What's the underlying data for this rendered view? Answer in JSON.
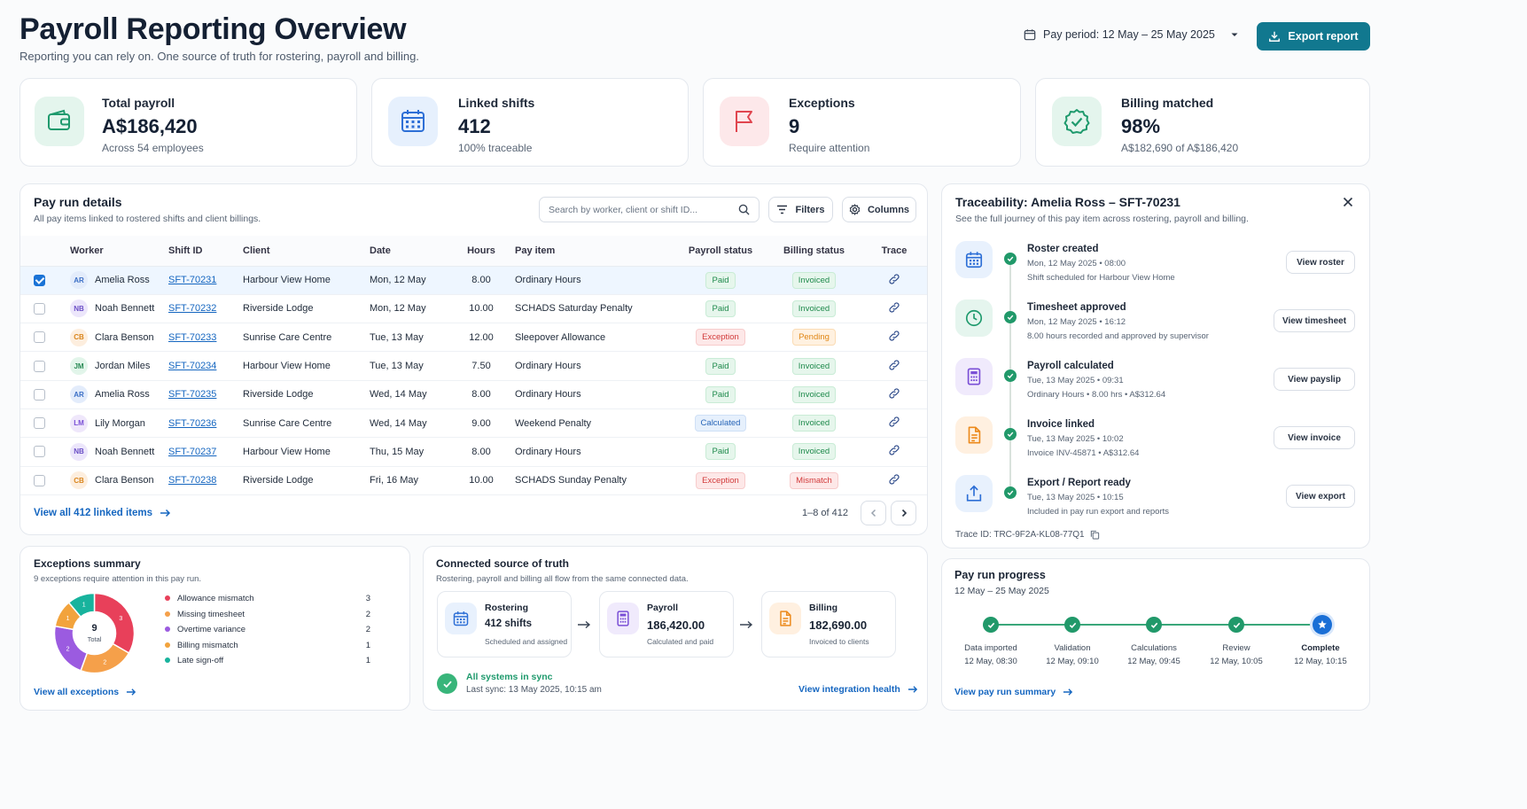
{
  "header": {
    "title": "Payroll Reporting Overview",
    "subtitle": "Reporting you can rely on. One source of truth for rostering, payroll and billing.",
    "pay_period": "Pay period: 12 May – 25 May 2025",
    "export_label": "Export report"
  },
  "kpis": [
    {
      "label": "Total payroll",
      "value": "A$186,420",
      "sub": "Across 54 employees",
      "icon": "wallet-icon",
      "color": "#1f9a6d"
    },
    {
      "label": "Linked shifts",
      "value": "412",
      "sub": "100% traceable",
      "icon": "calendar-icon",
      "color": "#2d6fd6"
    },
    {
      "label": "Exceptions",
      "value": "9",
      "sub": "Require attention",
      "icon": "flag-icon",
      "color": "#e0454f"
    },
    {
      "label": "Billing matched",
      "value": "98%",
      "sub": "A$182,690 of A$186,420",
      "icon": "check-badge-icon",
      "color": "#1f9a6d"
    }
  ],
  "payrun": {
    "title": "Pay run details",
    "subtitle": "All pay items linked to rostered shifts and client billings.",
    "search_placeholder": "Search by worker, client or shift ID...",
    "filters_label": "Filters",
    "columns_label": "Columns",
    "headers": [
      "Worker",
      "Shift ID",
      "Client",
      "Date",
      "Hours",
      "Pay item",
      "Payroll status",
      "Billing status",
      "Trace"
    ],
    "rows": [
      {
        "initials": "AR",
        "worker": "Amelia Ross",
        "shift": "SFT-70231",
        "client": "Harbour View Home",
        "date": "Mon, 12 May",
        "hours": "8.00",
        "item": "Ordinary Hours",
        "payroll": "Paid",
        "billing": "Invoiced",
        "selected": true
      },
      {
        "initials": "NB",
        "worker": "Noah Bennett",
        "shift": "SFT-70232",
        "client": "Riverside Lodge",
        "date": "Mon, 12 May",
        "hours": "10.00",
        "item": "SCHADS Saturday Penalty",
        "payroll": "Paid",
        "billing": "Invoiced",
        "selected": false
      },
      {
        "initials": "CB",
        "worker": "Clara Benson",
        "shift": "SFT-70233",
        "client": "Sunrise Care Centre",
        "date": "Tue, 13 May",
        "hours": "12.00",
        "item": "Sleepover Allowance",
        "payroll": "Exception",
        "billing": "Pending",
        "selected": false
      },
      {
        "initials": "JM",
        "worker": "Jordan Miles",
        "shift": "SFT-70234",
        "client": "Harbour View Home",
        "date": "Tue, 13 May",
        "hours": "7.50",
        "item": "Ordinary Hours",
        "payroll": "Paid",
        "billing": "Invoiced",
        "selected": false
      },
      {
        "initials": "AR",
        "worker": "Amelia Ross",
        "shift": "SFT-70235",
        "client": "Riverside Lodge",
        "date": "Wed, 14 May",
        "hours": "8.00",
        "item": "Ordinary Hours",
        "payroll": "Paid",
        "billing": "Invoiced",
        "selected": false
      },
      {
        "initials": "LM",
        "worker": "Lily Morgan",
        "shift": "SFT-70236",
        "client": "Sunrise Care Centre",
        "date": "Wed, 14 May",
        "hours": "9.00",
        "item": "Weekend Penalty",
        "payroll": "Calculated",
        "billing": "Invoiced",
        "selected": false
      },
      {
        "initials": "NB",
        "worker": "Noah Bennett",
        "shift": "SFT-70237",
        "client": "Harbour View Home",
        "date": "Thu, 15 May",
        "hours": "8.00",
        "item": "Ordinary Hours",
        "payroll": "Paid",
        "billing": "Invoiced",
        "selected": false
      },
      {
        "initials": "CB",
        "worker": "Clara Benson",
        "shift": "SFT-70238",
        "client": "Riverside Lodge",
        "date": "Fri, 16 May",
        "hours": "10.00",
        "item": "SCHADS Sunday Penalty",
        "payroll": "Exception",
        "billing": "Mismatch",
        "selected": false
      }
    ],
    "view_all": "View all 412 linked items",
    "pagination": "1–8 of 412"
  },
  "trace": {
    "title": "Traceability: Amelia Ross – SFT-70231",
    "subtitle": "See the full journey of this pay item across rostering, payroll and billing.",
    "steps": [
      {
        "title": "Roster created",
        "meta1": "Mon, 12 May 2025 • 08:00",
        "meta2": "Shift scheduled for Harbour View Home",
        "button": "View roster",
        "icon": "calendar-icon",
        "color": "#2d6fd6",
        "bg": "#e8f1fd"
      },
      {
        "title": "Timesheet approved",
        "meta1": "Mon, 12 May 2025 • 16:12",
        "meta2": "8.00 hours recorded and approved by supervisor",
        "button": "View timesheet",
        "icon": "clock-icon",
        "color": "#1f9a6d",
        "bg": "#e5f5ee"
      },
      {
        "title": "Payroll calculated",
        "meta1": "Tue, 13 May 2025 • 09:31",
        "meta2": "Ordinary Hours  •  8.00 hrs  •  A$312.64",
        "button": "View payslip",
        "icon": "calculator-icon",
        "color": "#7a4fd6",
        "bg": "#f0eafc"
      },
      {
        "title": "Invoice linked",
        "meta1": "Tue, 13 May 2025 • 10:02",
        "meta2": "Invoice INV-45871  •  A$312.64",
        "button": "View invoice",
        "icon": "document-icon",
        "color": "#ec8a1c",
        "bg": "#fff0e0"
      },
      {
        "title": "Export / Report ready",
        "meta1": "Tue, 13 May 2025 • 10:15",
        "meta2": "Included in pay run export and reports",
        "button": "View export",
        "icon": "upload-icon",
        "color": "#2d6fd6",
        "bg": "#e8f1fd"
      }
    ],
    "trace_id": "Trace ID: TRC-9F2A-KL08-77Q1"
  },
  "exceptions": {
    "title": "Exceptions summary",
    "subtitle": "9 exceptions require attention in this pay run.",
    "total": "9",
    "total_label": "Total",
    "view_all": "View all exceptions",
    "chart_data": {
      "type": "pie",
      "categories": [
        "Allowance mismatch",
        "Missing timesheet",
        "Overtime variance",
        "Billing mismatch",
        "Late sign-off"
      ],
      "values": [
        3,
        2,
        2,
        1,
        1
      ],
      "colors": [
        "#e8405a",
        "#f5a04a",
        "#9b5be0",
        "#f2a33c",
        "#18b39d"
      ]
    }
  },
  "source": {
    "title": "Connected source of truth",
    "subtitle": "Rostering, payroll and billing all flow from the same connected data.",
    "boxes": [
      {
        "label": "Rostering",
        "value": "412 shifts",
        "sub": "Scheduled and assigned",
        "icon": "calendar-icon",
        "color": "#2d6fd6",
        "bg": "#e8f1fd"
      },
      {
        "label": "Payroll",
        "value": "186,420.00",
        "sub": "Calculated and paid",
        "icon": "calculator-icon",
        "color": "#7a4fd6",
        "bg": "#f0eafc"
      },
      {
        "label": "Billing",
        "value": "182,690.00",
        "sub": "Invoiced to clients",
        "icon": "document-icon",
        "color": "#ec8a1c",
        "bg": "#fff0e0"
      }
    ],
    "sync_title": "All systems in sync",
    "sync_meta": "Last sync: 13 May 2025, 10:15 am",
    "view_health": "View integration health"
  },
  "progress": {
    "title": "Pay run progress",
    "range": "12 May – 25 May 2025",
    "steps": [
      {
        "label": "Data imported",
        "time": "12 May, 08:30"
      },
      {
        "label": "Validation",
        "time": "12 May, 09:10"
      },
      {
        "label": "Calculations",
        "time": "12 May, 09:45"
      },
      {
        "label": "Review",
        "time": "12 May, 10:05"
      },
      {
        "label": "Complete",
        "time": "12 May, 10:15"
      }
    ],
    "view_summary": "View pay run summary"
  }
}
